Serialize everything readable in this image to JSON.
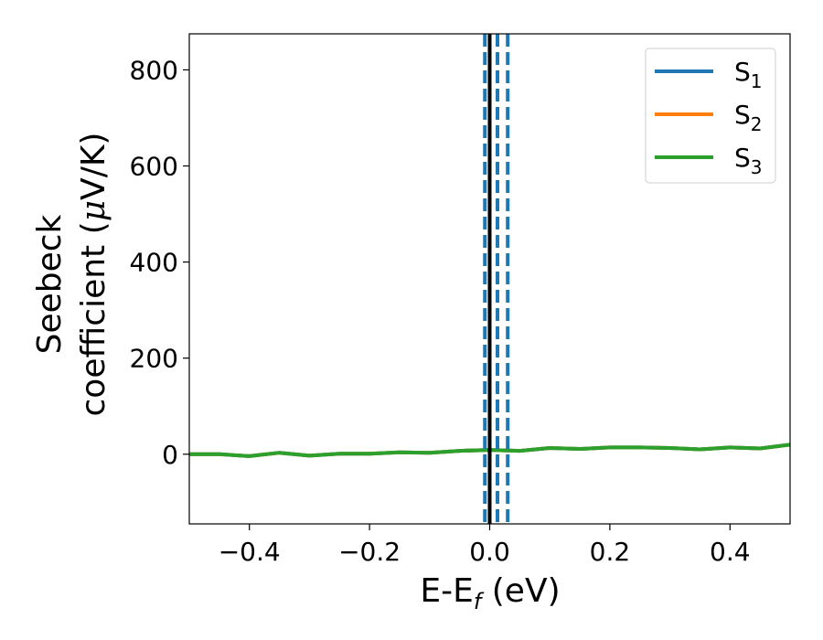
{
  "chart_data": {
    "type": "line",
    "xlabel": {
      "main": "E-E",
      "sub": "f",
      "unit": " (eV)"
    },
    "ylabel": {
      "line1": "Seebeck",
      "line2_prefix": "coefficient  (",
      "mu": "μ",
      "line2_suffix": "V/K)"
    },
    "xlim": [
      -0.5,
      0.5
    ],
    "ylim": [
      -145,
      875
    ],
    "x_ticks": [
      -0.4,
      -0.2,
      0.0,
      0.2,
      0.4
    ],
    "x_tick_labels": [
      "−0.4",
      "−0.2",
      "0.0",
      "0.2",
      "0.4"
    ],
    "y_ticks": [
      0,
      200,
      400,
      600,
      800
    ],
    "y_tick_labels": [
      "0",
      "200",
      "400",
      "600",
      "800"
    ],
    "legend_position": "top-right",
    "series": [
      {
        "name": "S",
        "sub": "1",
        "color": "#1f77b4",
        "x": [
          -0.5,
          -0.45,
          -0.4,
          -0.35,
          -0.3,
          -0.25,
          -0.2,
          -0.15,
          -0.1,
          -0.05,
          0.0,
          0.05,
          0.1,
          0.15,
          0.2,
          0.25,
          0.3,
          0.35,
          0.4,
          0.45,
          0.5
        ],
        "y": [
          0,
          0,
          -4,
          3,
          -3,
          1,
          1,
          4,
          3,
          7,
          9,
          7,
          13,
          11,
          14,
          14,
          13,
          10,
          14,
          12,
          20
        ]
      },
      {
        "name": "S",
        "sub": "2",
        "color": "#ff7f0e",
        "x": [
          -0.5,
          -0.45,
          -0.4,
          -0.35,
          -0.3,
          -0.25,
          -0.2,
          -0.15,
          -0.1,
          -0.05,
          0.0,
          0.05,
          0.1,
          0.15,
          0.2,
          0.25,
          0.3,
          0.35,
          0.4,
          0.45,
          0.5
        ],
        "y": [
          0,
          0,
          -4,
          3,
          -3,
          1,
          1,
          4,
          3,
          7,
          9,
          7,
          13,
          11,
          14,
          14,
          13,
          10,
          14,
          12,
          20
        ]
      },
      {
        "name": "S",
        "sub": "3",
        "color": "#2ca02c",
        "x": [
          -0.5,
          -0.45,
          -0.4,
          -0.35,
          -0.3,
          -0.25,
          -0.2,
          -0.15,
          -0.1,
          -0.05,
          0.0,
          0.05,
          0.1,
          0.15,
          0.2,
          0.25,
          0.3,
          0.35,
          0.4,
          0.45,
          0.5
        ],
        "y": [
          0,
          0,
          -4,
          3,
          -3,
          1,
          1,
          4,
          3,
          7,
          9,
          7,
          13,
          11,
          14,
          14,
          13,
          10,
          14,
          12,
          20
        ]
      }
    ],
    "vertical_lines": [
      {
        "x": -0.008,
        "style": "dashed",
        "color": "#1f77b4"
      },
      {
        "x": 0.0,
        "style": "solid",
        "color": "#000000"
      },
      {
        "x": 0.013,
        "style": "dashed",
        "color": "#1f77b4"
      },
      {
        "x": 0.03,
        "style": "dashed",
        "color": "#1f77b4"
      }
    ]
  }
}
